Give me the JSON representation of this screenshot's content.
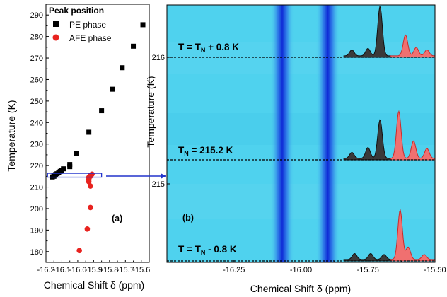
{
  "chart_data": [
    {
      "panel_label": "(a)",
      "type": "scatter",
      "xlabel": "Chemical Shift δ (ppm)",
      "ylabel": "Temperature (K)",
      "xlim": [
        -16.2,
        -15.55
      ],
      "ylim": [
        175,
        295
      ],
      "xticks": [
        -16.2,
        -16.1,
        -16.0,
        -15.9,
        -15.8,
        -15.7,
        -15.6
      ],
      "xtick_labels": [
        "-16.2",
        "-16.1",
        "-16.0",
        "-15.9",
        "-15.8",
        "-15.7",
        "-15.6"
      ],
      "yticks": [
        180,
        190,
        200,
        210,
        220,
        230,
        240,
        250,
        260,
        270,
        280,
        290
      ],
      "ytick_labels": [
        "180",
        "190",
        "200",
        "210",
        "220",
        "230",
        "240",
        "250",
        "260",
        "270",
        "280",
        "290"
      ],
      "legend_title": "Peak position",
      "legend_position": "top-left",
      "series": [
        {
          "name": "PE phase",
          "marker": "square",
          "color": "#000000",
          "points": [
            [
              -15.59,
              285.5
            ],
            [
              -15.65,
              275.5
            ],
            [
              -15.72,
              265.5
            ],
            [
              -15.78,
              255.5
            ],
            [
              -15.85,
              245.5
            ],
            [
              -15.93,
              235.5
            ],
            [
              -16.01,
              225.5
            ],
            [
              -16.05,
              220.5
            ],
            [
              -16.05,
              219.5
            ],
            [
              -16.09,
              218.5
            ],
            [
              -16.1,
              217.8
            ],
            [
              -16.11,
              217.3
            ],
            [
              -16.12,
              216.7
            ],
            [
              -16.13,
              216.2
            ],
            [
              -16.14,
              215.8
            ],
            [
              -16.15,
              215.3
            ],
            [
              -16.15,
              215.0
            ],
            [
              -16.16,
              214.7
            ]
          ]
        },
        {
          "name": "AFE phase",
          "marker": "circle",
          "color": "#e8231f",
          "points": [
            [
              -15.91,
              216.0
            ],
            [
              -15.92,
              215.5
            ],
            [
              -15.92,
              215.0
            ],
            [
              -15.93,
              214.5
            ],
            [
              -15.93,
              213.5
            ],
            [
              -15.93,
              212.5
            ],
            [
              -15.92,
              210.5
            ],
            [
              -15.92,
              200.5
            ],
            [
              -15.94,
              190.5
            ],
            [
              -15.99,
              180.5
            ]
          ]
        }
      ],
      "highlight_box": {
        "x": [
          -16.19,
          -15.85
        ],
        "y": [
          214.6,
          216.4
        ],
        "color": "#2233cc"
      }
    },
    {
      "panel_label": "(b)",
      "type": "heatmap",
      "xlabel": "Chemical Shift δ (ppm)",
      "ylabel": "Temperature (K)",
      "xlim": [
        -16.5,
        -15.5
      ],
      "xticks": [
        -16.25,
        -16.0,
        -15.75,
        -15.5
      ],
      "xtick_labels": [
        "-16.25",
        "-16.00",
        "-15.75",
        "-15.50"
      ],
      "ytick_labels": [
        "216",
        "215"
      ],
      "colors": {
        "background": "#4fd2ee",
        "dark_band": "#1030d8",
        "pe_peak": "#3a3a3a",
        "afe_peak": "#f07070"
      },
      "bands": [
        {
          "x_start": -16.09,
          "x_end": -16.05
        },
        {
          "x_start": -15.92,
          "x_end": -15.88
        }
      ],
      "spectra": [
        {
          "label_main": "T = T",
          "label_sub": "N",
          "label_rest": " + 0.8 K",
          "peaks_pe": [
            [
              -15.81,
              0.12
            ],
            [
              -15.75,
              0.15
            ],
            [
              -15.705,
              1.0
            ]
          ],
          "peaks_afe": [
            [
              -15.61,
              0.42
            ],
            [
              -15.57,
              0.17
            ],
            [
              -15.53,
              0.12
            ]
          ]
        },
        {
          "label_main": "T",
          "label_sub": "N",
          "label_rest": " = 215.2 K",
          "peaks_pe": [
            [
              -15.81,
              0.12
            ],
            [
              -15.75,
              0.22
            ],
            [
              -15.705,
              0.78
            ]
          ],
          "peaks_afe": [
            [
              -15.635,
              0.95
            ],
            [
              -15.58,
              0.35
            ],
            [
              -15.53,
              0.2
            ]
          ]
        },
        {
          "label_main": "T = T",
          "label_sub": "N",
          "label_rest": " - 0.8 K",
          "peaks_pe": [
            [
              -15.8,
              0.12
            ],
            [
              -15.74,
              0.12
            ],
            [
              -15.69,
              0.1
            ]
          ],
          "peaks_afe": [
            [
              -15.63,
              1.0
            ],
            [
              -15.6,
              0.25
            ],
            [
              -15.54,
              0.1
            ]
          ]
        }
      ]
    }
  ]
}
